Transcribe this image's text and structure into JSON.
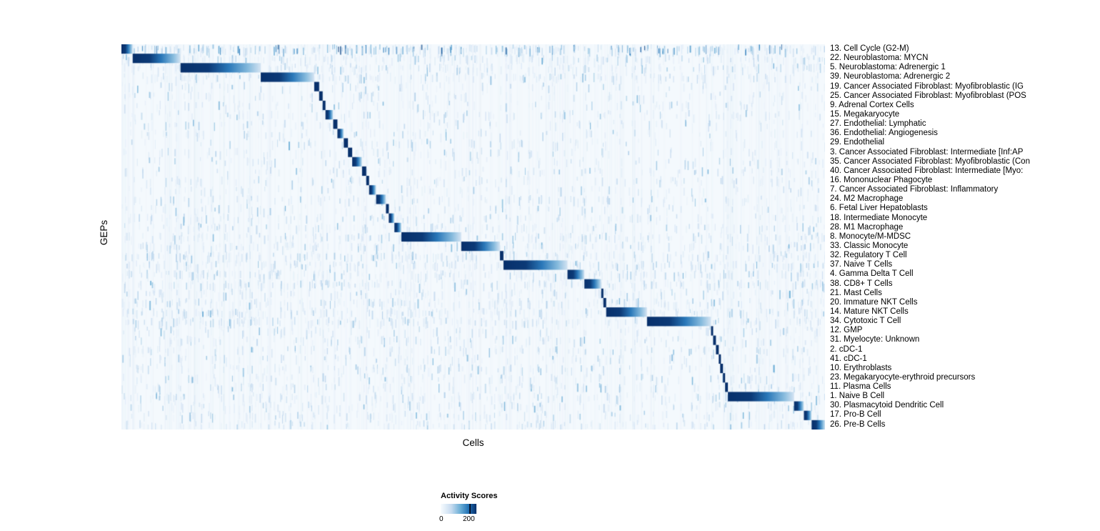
{
  "chart_data": {
    "type": "heatmap",
    "title": "",
    "xlabel": "Cells",
    "ylabel": "GEPs",
    "colormap": "Blues",
    "value_range": [
      0,
      250
    ],
    "grid": false,
    "legend": {
      "title": "Activity Scores",
      "position": "bottom",
      "min_label": "0",
      "tick_label": "200",
      "tick_fraction": 0.8,
      "colors": [
        "#f7fbff",
        "#6baed6",
        "#2171b5",
        "#08306b"
      ]
    },
    "rows": [
      {
        "label": "13. Cell Cycle (G2-M)",
        "start": 0.0,
        "end": 0.016,
        "scatter": 0.9
      },
      {
        "label": "22. Neuroblastoma: MYCN",
        "start": 0.016,
        "end": 0.084,
        "scatter": 0.5
      },
      {
        "label": "5. Neuroblastoma: Adrenergic 1",
        "start": 0.084,
        "end": 0.198,
        "scatter": 0.5
      },
      {
        "label": "39. Neuroblastoma: Adrenergic 2",
        "start": 0.198,
        "end": 0.274,
        "scatter": 0.45
      },
      {
        "label": "19. Cancer Associated Fibroblast: Myofibroblastic (IG",
        "start": 0.274,
        "end": 0.281,
        "scatter": 0.2
      },
      {
        "label": "25. Cancer Associated Fibroblast: Myofibroblast (POS",
        "start": 0.281,
        "end": 0.286,
        "scatter": 0.2
      },
      {
        "label": "9. Adrenal Cortex Cells",
        "start": 0.286,
        "end": 0.29,
        "scatter": 0.2
      },
      {
        "label": "15. Megakaryocyte",
        "start": 0.29,
        "end": 0.301,
        "scatter": 0.25
      },
      {
        "label": "27. Endothelial: Lymphatic",
        "start": 0.301,
        "end": 0.307,
        "scatter": 0.2
      },
      {
        "label": "36. Endothelial: Angiogenesis",
        "start": 0.307,
        "end": 0.316,
        "scatter": 0.2
      },
      {
        "label": "29. Endothelial",
        "start": 0.316,
        "end": 0.322,
        "scatter": 0.2
      },
      {
        "label": "3. Cancer Associated Fibroblast: Intermediate [Inf:AP",
        "start": 0.322,
        "end": 0.328,
        "scatter": 0.2
      },
      {
        "label": "35. Cancer Associated Fibroblast: Myofibroblastic (Con",
        "start": 0.328,
        "end": 0.342,
        "scatter": 0.2
      },
      {
        "label": "40. Cancer Associated Fibroblast: Intermediate [Myo:",
        "start": 0.342,
        "end": 0.348,
        "scatter": 0.2
      },
      {
        "label": "16. Mononuclear Phagocyte",
        "start": 0.348,
        "end": 0.352,
        "scatter": 0.25
      },
      {
        "label": "7. Cancer Associated Fibroblast: Inflammatory",
        "start": 0.352,
        "end": 0.362,
        "scatter": 0.2
      },
      {
        "label": "24. M2 Macrophage",
        "start": 0.362,
        "end": 0.376,
        "scatter": 0.3
      },
      {
        "label": "6. Fetal Liver Hepatoblasts",
        "start": 0.376,
        "end": 0.38,
        "scatter": 0.2
      },
      {
        "label": "18. Intermediate Monocyte",
        "start": 0.38,
        "end": 0.388,
        "scatter": 0.3
      },
      {
        "label": "28. M1 Macrophage",
        "start": 0.388,
        "end": 0.398,
        "scatter": 0.3
      },
      {
        "label": "8. Monocyte/M-MDSC",
        "start": 0.398,
        "end": 0.483,
        "scatter": 0.4
      },
      {
        "label": "33. Classic Monocyte",
        "start": 0.483,
        "end": 0.538,
        "scatter": 0.4
      },
      {
        "label": "32. Regulatory T Cell",
        "start": 0.538,
        "end": 0.543,
        "scatter": 0.5
      },
      {
        "label": "37. Naive T Cells",
        "start": 0.543,
        "end": 0.634,
        "scatter": 0.5
      },
      {
        "label": "4. Gamma Delta T Cell",
        "start": 0.634,
        "end": 0.658,
        "scatter": 0.5
      },
      {
        "label": "38. CD8+ T Cells",
        "start": 0.658,
        "end": 0.682,
        "scatter": 0.5
      },
      {
        "label": "21. Mast Cells",
        "start": 0.682,
        "end": 0.685,
        "scatter": 0.3
      },
      {
        "label": "20. Immature NKT Cells",
        "start": 0.685,
        "end": 0.689,
        "scatter": 0.45
      },
      {
        "label": "14. Mature NKT Cells",
        "start": 0.689,
        "end": 0.747,
        "scatter": 0.5
      },
      {
        "label": "34. Cytotoxic T Cell",
        "start": 0.747,
        "end": 0.838,
        "scatter": 0.5
      },
      {
        "label": "12. GMP",
        "start": 0.838,
        "end": 0.841,
        "scatter": 0.25
      },
      {
        "label": "31. Myelocyte: Unknown",
        "start": 0.841,
        "end": 0.845,
        "scatter": 0.3
      },
      {
        "label": "2. cDC-1",
        "start": 0.845,
        "end": 0.849,
        "scatter": 0.3
      },
      {
        "label": "41. cDC-1",
        "start": 0.849,
        "end": 0.851,
        "scatter": 0.25
      },
      {
        "label": "10. Erythroblasts",
        "start": 0.851,
        "end": 0.855,
        "scatter": 0.3
      },
      {
        "label": "23. Megakaryocyte-erythroid precursors",
        "start": 0.855,
        "end": 0.858,
        "scatter": 0.3
      },
      {
        "label": "11. Plasma Cells",
        "start": 0.858,
        "end": 0.862,
        "scatter": 0.3
      },
      {
        "label": "1. Naive B Cell",
        "start": 0.862,
        "end": 0.956,
        "scatter": 0.4
      },
      {
        "label": "30. Plasmacytoid Dendritic Cell",
        "start": 0.956,
        "end": 0.97,
        "scatter": 0.3
      },
      {
        "label": "17. Pro-B Cell",
        "start": 0.97,
        "end": 0.981,
        "scatter": 0.3
      },
      {
        "label": "26. Pre-B Cells",
        "start": 0.981,
        "end": 1.0,
        "scatter": 0.35
      }
    ]
  }
}
